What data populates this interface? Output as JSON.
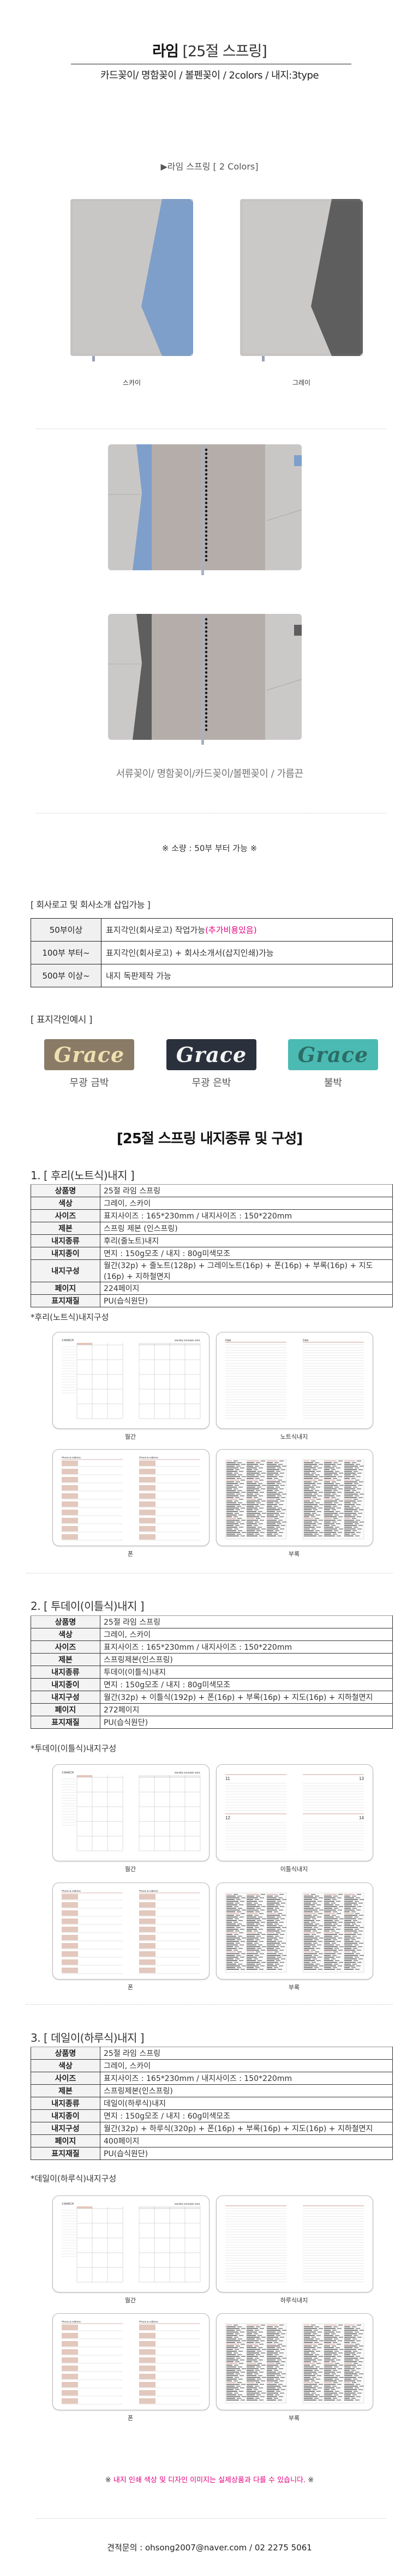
{
  "header": {
    "title_main": "라임",
    "title_sub": "[25절 스프링]",
    "subtitle": "카드꽂이/ 명함꽂이 / 볼펜꽂이 / 2colors /  내지:3type"
  },
  "colors_section": {
    "heading": "▶라임 스프링 [ 2 Colors]",
    "items": [
      {
        "label": "스카이",
        "base": "#c9c7c6",
        "accent": "#7e9fca"
      },
      {
        "label": "그레이",
        "base": "#cbc9c8",
        "accent": "#5e5e5f"
      }
    ]
  },
  "open_view": {
    "caption": "서류꽂이/ 명함꽂이/카드꽂이/볼펜꽂이 / 가름끈",
    "inner_color": "#b4adaa"
  },
  "quantity_note": "※ 소량 : 50부 부터 가능 ※",
  "logo_section": {
    "heading": "[ 회사로고 및 회사소개 삽입가능 ]",
    "rows": [
      {
        "qty": "50부이상",
        "desc": "표지각인(회사로고) 작업가능",
        "extra": "(추가비용있음)"
      },
      {
        "qty": "100부 부터~",
        "desc": "표지각인(회사로고) + 회사소개서(삽지인쇄)가능",
        "extra": ""
      },
      {
        "qty": "500부 이상~",
        "desc": "내지 독판제작 가능",
        "extra": ""
      }
    ],
    "highlight_color": "#e4007f"
  },
  "imprint_section": {
    "heading": "[ 표지각인예시 ]",
    "sample_text": "Grace",
    "items": [
      {
        "label": "무광 금박",
        "bg": "#8a7b67",
        "fg": "#efe0b0"
      },
      {
        "label": "무광 은박",
        "bg": "#2b313c",
        "fg": "#f4f4f4"
      },
      {
        "label": "불박",
        "bg": "#4bbab2",
        "fg": "#2a6d66"
      }
    ]
  },
  "inner_title": "[25절 스프링 내지종류 및 구성]",
  "inner_types": [
    {
      "heading": "1. [ 후리(노트식)내지 ]",
      "specs": [
        {
          "k": "상품명",
          "v": "25절 라임 스프링"
        },
        {
          "k": "색상",
          "v": "그레이, 스카이"
        },
        {
          "k": "사이즈",
          "v": "표지사이즈 : 165*230mm / 내지사이즈 : 150*220mm"
        },
        {
          "k": "제본",
          "v": "스프링 제본 (인스프링)"
        },
        {
          "k": "내지종류",
          "v": "후리(줄노트)내지"
        },
        {
          "k": "내지종이",
          "v": "면지 : 150g모조 / 내지 : 80g미색모조"
        },
        {
          "k": "내지구성",
          "v": "월간(32p) + 줄노트(128p) + 그레이노트(16p) + 폰(16p) + 부록(16p) + 지도(16p) + 지하철면지"
        },
        {
          "k": "페이지",
          "v": "224페이지"
        },
        {
          "k": "표지재질",
          "v": "PU(습식원단)"
        }
      ],
      "structure_heading": "*후리(노트식)내지구성",
      "pages": [
        {
          "label": "월간",
          "kind": "monthly"
        },
        {
          "label": "노트식내지",
          "kind": "lined"
        },
        {
          "label": "폰",
          "kind": "phone"
        },
        {
          "label": "부록",
          "kind": "appendix"
        }
      ]
    },
    {
      "heading": "2. [ 투데이(이틀식)내지 ]",
      "specs": [
        {
          "k": "상품명",
          "v": "25절 라임 스프링"
        },
        {
          "k": "색상",
          "v": "그레이, 스카이"
        },
        {
          "k": "사이즈",
          "v": "표지사이즈 : 165*230mm / 내지사이즈 : 150*220mm"
        },
        {
          "k": "제본",
          "v": "스프링제본(인스프링)"
        },
        {
          "k": "내지종류",
          "v": "투데이(이틀식)내지"
        },
        {
          "k": "내지종이",
          "v": "면지 : 150g모조 / 내지 : 80g미색모조"
        },
        {
          "k": "내지구성",
          "v": "월간(32p) + 이틀식(192p) + 폰(16p) + 부록(16p) + 지도(16p) + 지하철면지"
        },
        {
          "k": "페이지",
          "v": "272페이지"
        },
        {
          "k": "표지재질",
          "v": "PU(습식원단)"
        }
      ],
      "structure_heading": "*투데이(이틀식)내지구성",
      "pages": [
        {
          "label": "월간",
          "kind": "monthly"
        },
        {
          "label": "이틀식내지",
          "kind": "twoday"
        },
        {
          "label": "폰",
          "kind": "phone"
        },
        {
          "label": "부록",
          "kind": "appendix"
        }
      ]
    },
    {
      "heading": "3. [ 데일이(하루식)내지 ]",
      "specs": [
        {
          "k": "상품명",
          "v": "25절 라임 스프링"
        },
        {
          "k": "색상",
          "v": "그레이, 스카이"
        },
        {
          "k": "사이즈",
          "v": "표지사이즈 : 165*230mm / 내지사이즈 : 150*220mm"
        },
        {
          "k": "제본",
          "v": "스프링제본(인스프링)"
        },
        {
          "k": "내지종류",
          "v": "데일이(하루식)내지"
        },
        {
          "k": "내지종이",
          "v": "면지 : 150g모조 / 내지 : 60g미색모조"
        },
        {
          "k": "내지구성",
          "v": "월간(32p) + 하루식(320p) + 폰(16p) + 부록(16p) + 지도(16p) + 지하철면지"
        },
        {
          "k": "페이지",
          "v": "400페이지"
        },
        {
          "k": "표지재질",
          "v": "PU(습식원단)"
        }
      ],
      "structure_heading": "*데일이(하루식)내지구성",
      "pages": [
        {
          "label": "월간",
          "kind": "monthly"
        },
        {
          "label": "하루식내지",
          "kind": "daily"
        },
        {
          "label": "폰",
          "kind": "phone"
        },
        {
          "label": "부록",
          "kind": "appendix"
        }
      ]
    }
  ],
  "thumb_text": {
    "monthly_title": "Monthly Schedule 2021",
    "month": "3 MARCH",
    "date": "Date",
    "phone": "Phone & Address"
  },
  "footer": {
    "notice_mark": "※",
    "notice": "내지 인쇄 색상 및 디자인 이미지는 실제상품과 다를 수 있습니다.",
    "notice_color": "#e4007f",
    "contact": "견적문의 : ohsong2007@naver.com / 02 2275 5061"
  }
}
